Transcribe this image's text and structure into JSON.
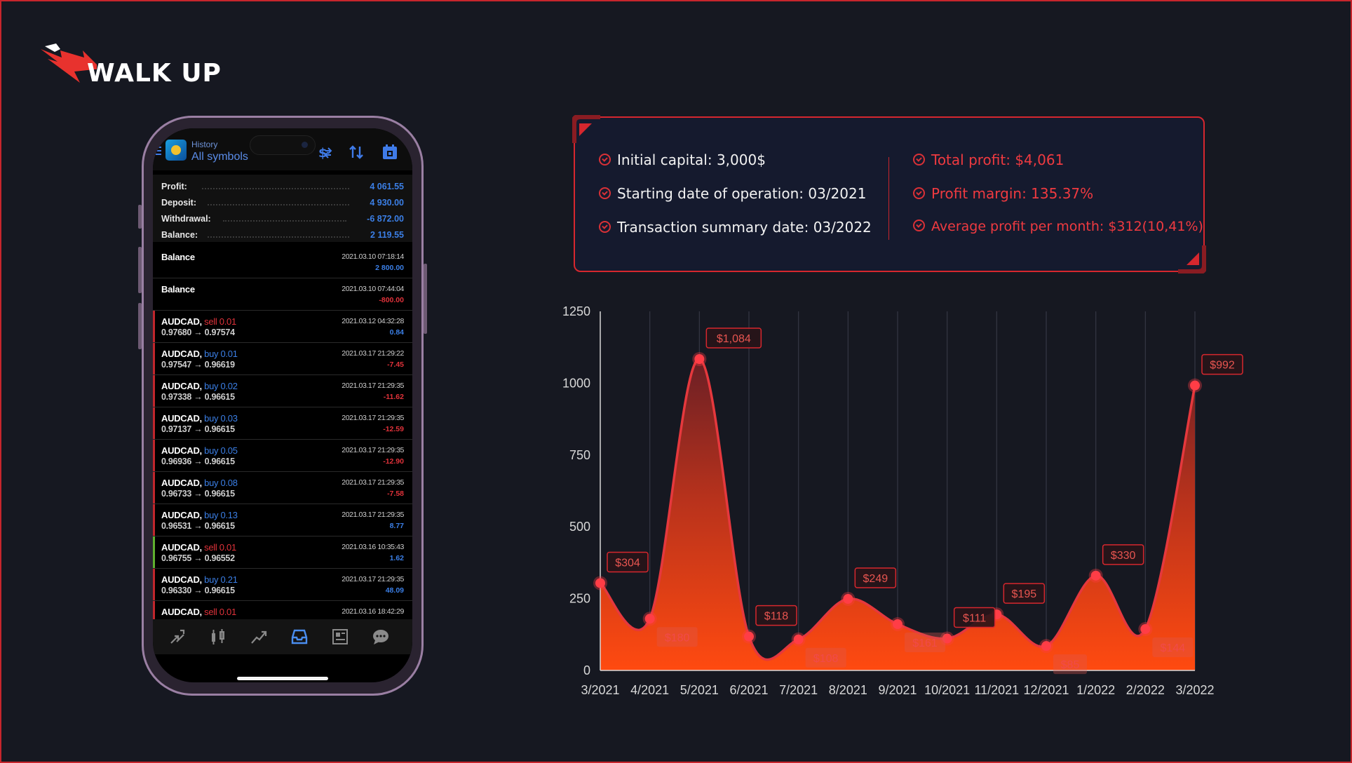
{
  "brand": {
    "logo_text": "WALK UP"
  },
  "phone": {
    "header": {
      "small_title": "History",
      "title": "All symbols"
    },
    "summary": [
      {
        "label": "Profit:",
        "value": "4 061.55"
      },
      {
        "label": "Deposit:",
        "value": "4 930.00"
      },
      {
        "label": "Withdrawal:",
        "value": "-6 872.00"
      },
      {
        "label": "Balance:",
        "value": "2 119.55"
      }
    ],
    "deals": [
      {
        "symbol": "Balance",
        "action": "",
        "price": "",
        "date": "2021.03.10 07:18:14",
        "profit": "2 800.00",
        "profit_color": "#3b7fe6",
        "action_color": "",
        "mark": ""
      },
      {
        "symbol": "Balance",
        "action": "",
        "price": "",
        "date": "2021.03.10 07:44:04",
        "profit": "-800.00",
        "profit_color": "#e0323a",
        "action_color": "",
        "mark": ""
      },
      {
        "symbol": "AUDCAD,",
        "action": "sell 0.01",
        "price": "0.97680 → 0.97574",
        "date": "2021.03.12 04:32:28",
        "profit": "0.84",
        "profit_color": "#3b7fe6",
        "action_color": "#e0323a",
        "mark": "#c0262c"
      },
      {
        "symbol": "AUDCAD,",
        "action": "buy 0.01",
        "price": "0.97547 → 0.96619",
        "date": "2021.03.17 21:29:22",
        "profit": "-7.45",
        "profit_color": "#e0323a",
        "action_color": "#3b7fe6",
        "mark": "#c0262c"
      },
      {
        "symbol": "AUDCAD,",
        "action": "buy 0.02",
        "price": "0.97338 → 0.96615",
        "date": "2021.03.17 21:29:35",
        "profit": "-11.62",
        "profit_color": "#e0323a",
        "action_color": "#3b7fe6",
        "mark": "#c0262c"
      },
      {
        "symbol": "AUDCAD,",
        "action": "buy 0.03",
        "price": "0.97137 → 0.96615",
        "date": "2021.03.17 21:29:35",
        "profit": "-12.59",
        "profit_color": "#e0323a",
        "action_color": "#3b7fe6",
        "mark": "#c0262c"
      },
      {
        "symbol": "AUDCAD,",
        "action": "buy 0.05",
        "price": "0.96936 → 0.96615",
        "date": "2021.03.17 21:29:35",
        "profit": "-12.90",
        "profit_color": "#e0323a",
        "action_color": "#3b7fe6",
        "mark": "#c0262c"
      },
      {
        "symbol": "AUDCAD,",
        "action": "buy 0.08",
        "price": "0.96733 → 0.96615",
        "date": "2021.03.17 21:29:35",
        "profit": "-7.58",
        "profit_color": "#e0323a",
        "action_color": "#3b7fe6",
        "mark": "#c0262c"
      },
      {
        "symbol": "AUDCAD,",
        "action": "buy 0.13",
        "price": "0.96531 → 0.96615",
        "date": "2021.03.17 21:29:35",
        "profit": "8.77",
        "profit_color": "#3b7fe6",
        "action_color": "#3b7fe6",
        "mark": "#c0262c"
      },
      {
        "symbol": "AUDCAD,",
        "action": "sell 0.01",
        "price": "0.96755 → 0.96552",
        "date": "2021.03.16 10:35:43",
        "profit": "1.62",
        "profit_color": "#3b7fe6",
        "action_color": "#e0323a",
        "mark": "#5fb02f"
      },
      {
        "symbol": "AUDCAD,",
        "action": "buy 0.21",
        "price": "0.96330 → 0.96615",
        "date": "2021.03.17 21:29:35",
        "profit": "48.09",
        "profit_color": "#3b7fe6",
        "action_color": "#3b7fe6",
        "mark": "#c0262c"
      },
      {
        "symbol": "AUDCAD,",
        "action": "sell 0.01",
        "price": "",
        "date": "2021.03.16 18:42:29",
        "profit": "",
        "profit_color": "#3b7fe6",
        "action_color": "#e0323a",
        "mark": "#c0262c"
      }
    ],
    "tabs": [
      "quotes-icon",
      "chart-icon",
      "trade-icon",
      "history-icon",
      "news-icon",
      "chat-icon"
    ]
  },
  "info": {
    "left": [
      "Initial capital: 3,000$",
      "Starting date of operation: 03/2021",
      "Transaction summary date: 03/2022"
    ],
    "right": [
      "Total profit: $4,061",
      "Profit margin: 135.37%",
      "Average profit per month: $312(10,41%)"
    ]
  },
  "colors": {
    "accent_red": "#d6272e",
    "buy_blue": "#3b7fe6",
    "bg": "#161821"
  },
  "chart_data": {
    "type": "area",
    "categories": [
      "3/2021",
      "4/2021",
      "5/2021",
      "6/2021",
      "7/2021",
      "8/2021",
      "9/2021",
      "10/2021",
      "11/2021",
      "12/2021",
      "1/2022",
      "2/2022",
      "3/2022"
    ],
    "values": [
      304,
      180,
      1084,
      118,
      108,
      249,
      161,
      111,
      195,
      85,
      330,
      144,
      992
    ],
    "labels": [
      "$304",
      "$180",
      "$1,084",
      "$118",
      "$108",
      "$249",
      "$161",
      "$111",
      "$195",
      "$85",
      "$330",
      "$144",
      "$992"
    ],
    "label_pos": [
      "above",
      "below",
      "above",
      "above",
      "below",
      "above",
      "below",
      "above",
      "above",
      "below",
      "above",
      "below",
      "above"
    ],
    "ylim": [
      0,
      1250
    ],
    "yticks": [
      0,
      250,
      500,
      750,
      1000,
      1250
    ],
    "grid": "vertical"
  }
}
